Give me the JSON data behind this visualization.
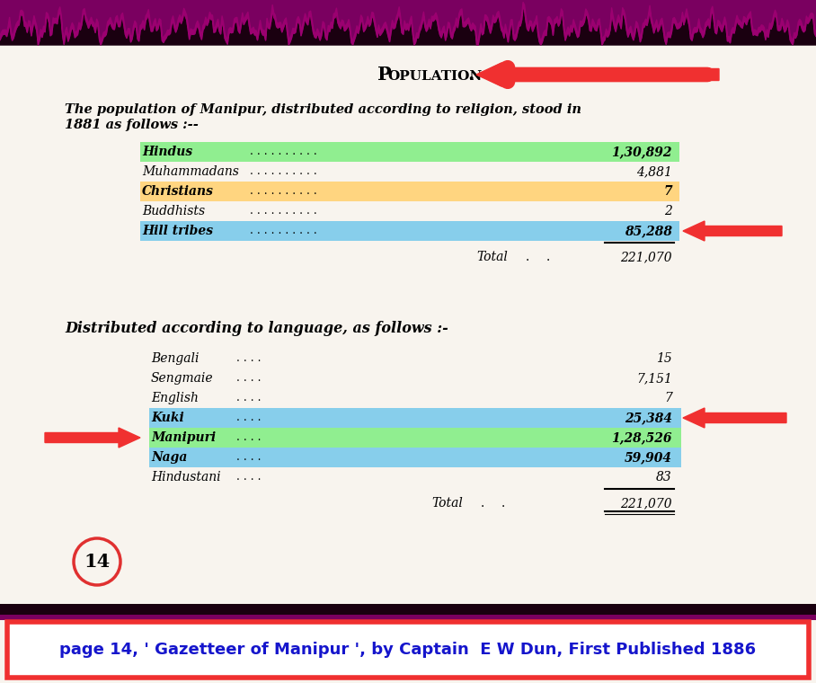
{
  "title": "Population.",
  "bg_color": "#f8f4ee",
  "intro_text_line1": "The population of Manipur, distributed according to religion, stood in",
  "intro_text_line2": "1881 as follows :--",
  "religion_section": {
    "rows": [
      {
        "label": "Hindus",
        "value": "1,30,892",
        "bg": "#90EE90"
      },
      {
        "label": "Muhammadans",
        "value": "4,881",
        "bg": null
      },
      {
        "label": "Christians",
        "value": "7",
        "bg": "#FFD580"
      },
      {
        "label": "Buddhists",
        "value": "2",
        "bg": null
      },
      {
        "label": "Hill tribes",
        "value": "85,288",
        "bg": "#87CEEB"
      }
    ],
    "total_value": "221,070"
  },
  "language_section": {
    "heading": "Distributed according to language, as follows :-",
    "rows": [
      {
        "label": "Bengali",
        "value": "15",
        "bg": null
      },
      {
        "label": "Sengmaie",
        "value": "7,151",
        "bg": null
      },
      {
        "label": "English",
        "value": "7",
        "bg": null
      },
      {
        "label": "Kuki",
        "value": "25,384",
        "bg": "#87CEEB"
      },
      {
        "label": "Manipuri",
        "value": "1,28,526",
        "bg": "#90EE90"
      },
      {
        "label": "Naga",
        "value": "59,904",
        "bg": "#87CEEB"
      },
      {
        "label": "Hindustani",
        "value": "83",
        "bg": null
      }
    ],
    "total_value": "221,070"
  },
  "page_number": "14",
  "footer_text": "page 14, ' Gazetteer of Manipur ', by Captain  E W Dun, First Published 1886",
  "footer_bg": "#ffffff",
  "footer_text_color": "#1515cc",
  "arrow_color": "#f03030",
  "page_circle_color": "#e03030",
  "border_dark": "#1a0010",
  "border_purple": "#7a0060"
}
